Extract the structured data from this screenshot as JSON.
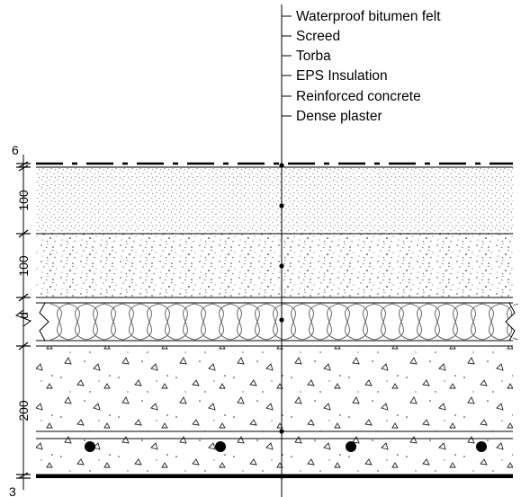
{
  "diagram": {
    "layer_labels": [
      "Waterproof bitumen felt",
      "Screed",
      "Torba",
      "EPS Insulation",
      "Reinforced concrete",
      "Dense plaster"
    ],
    "dimensions": [
      "6",
      "100",
      "100",
      "d",
      "200",
      "3"
    ],
    "colors": {
      "ink": "#000000",
      "background": "#ffffff"
    }
  }
}
